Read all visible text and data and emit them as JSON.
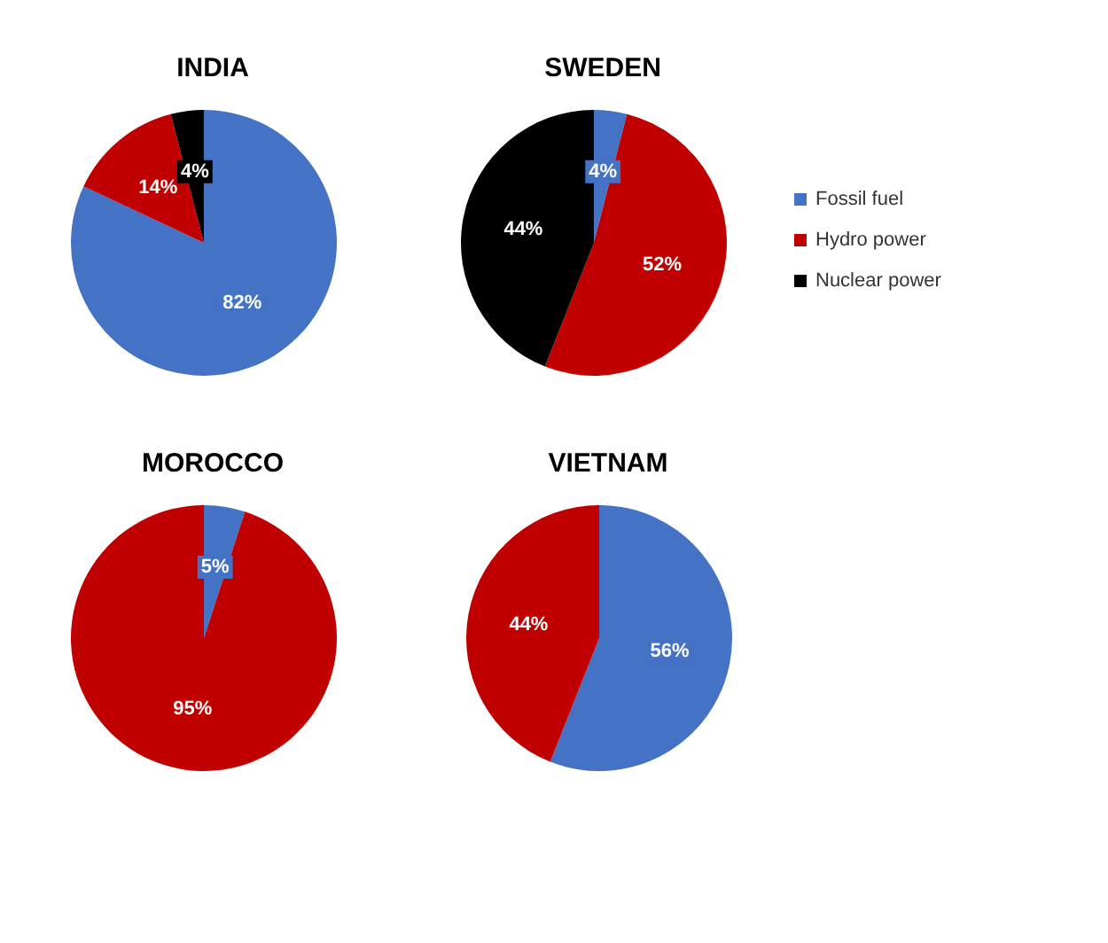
{
  "chart_data": [
    {
      "type": "pie",
      "title": "INDIA",
      "categories": [
        null,
        null,
        null
      ],
      "values": [
        82,
        14,
        4
      ],
      "colors": [
        "#4472c4",
        "#c00000",
        "#000000"
      ],
      "value_labels": [
        "82%",
        "14%",
        "4%"
      ],
      "legend": false
    },
    {
      "type": "pie",
      "title": "SWEDEN",
      "categories": [
        "Fossil fuel",
        "Hydro power",
        "Nuclear power"
      ],
      "values": [
        4,
        52,
        44
      ],
      "colors": [
        "#4472c4",
        "#c00000",
        "#000000"
      ],
      "value_labels": [
        "4%",
        "52%",
        "44%"
      ],
      "legend": "right"
    },
    {
      "type": "pie",
      "title": "MOROCCO",
      "categories": [
        null,
        null
      ],
      "values": [
        5,
        95
      ],
      "colors": [
        "#4472c4",
        "#c00000"
      ],
      "value_labels": [
        "5%",
        "95%"
      ],
      "legend": false
    },
    {
      "type": "pie",
      "title": "VIETNAM",
      "categories": [
        null,
        null
      ],
      "values": [
        56,
        44
      ],
      "colors": [
        "#4472c4",
        "#c00000"
      ],
      "value_labels": [
        "56%",
        "44%"
      ],
      "legend": false
    }
  ]
}
